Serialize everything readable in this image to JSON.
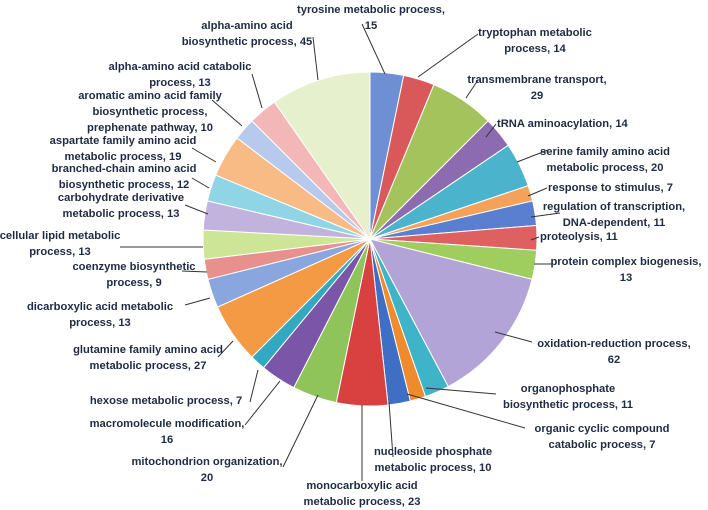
{
  "chart_data": {
    "type": "pie",
    "title": "",
    "slices": [
      {
        "name": "tyrosine metabolic process",
        "value": 15,
        "color": "#6f8fd4",
        "lines": [
          "tyrosine metabolic process,",
          "15"
        ]
      },
      {
        "name": "tryptophan metabolic process",
        "value": 14,
        "color": "#d9585a",
        "lines": [
          "tryptophan metabolic",
          "process, 14"
        ]
      },
      {
        "name": "transmembrane transport",
        "value": 29,
        "color": "#a5c35c",
        "lines": [
          "transmembrane transport,",
          "29"
        ]
      },
      {
        "name": "tRNA aminoacylation",
        "value": 14,
        "color": "#8c6bb1",
        "lines": [
          "tRNA aminoacylation, 14"
        ]
      },
      {
        "name": "serine family amino acid metabolic process",
        "value": 20,
        "color": "#4bb3cc",
        "lines": [
          "serine family amino acid",
          "metabolic process, 20"
        ]
      },
      {
        "name": "response to stimulus",
        "value": 7,
        "color": "#f4a25a",
        "lines": [
          "response to stimulus, 7"
        ]
      },
      {
        "name": "regulation of transcription, DNA-dependent",
        "value": 11,
        "color": "#5a7fd0",
        "lines": [
          "regulation of transcription,",
          "DNA-dependent, 11"
        ]
      },
      {
        "name": "proteolysis",
        "value": 11,
        "color": "#de6060",
        "lines": [
          "proteolysis, 11"
        ]
      },
      {
        "name": "protein complex biogenesis",
        "value": 13,
        "color": "#9fcd5e",
        "lines": [
          "protein complex biogenesis,",
          "13"
        ]
      },
      {
        "name": "oxidation-reduction process",
        "value": 62,
        "color": "#b3a4d8",
        "lines": [
          "oxidation-reduction process,",
          "62"
        ]
      },
      {
        "name": "organophosphate biosynthetic process",
        "value": 11,
        "color": "#3fb3c7",
        "lines": [
          "organophosphate",
          "biosynthetic process, 11"
        ]
      },
      {
        "name": "organic cyclic compound catabolic process",
        "value": 7,
        "color": "#f08b2d",
        "lines": [
          "organic cyclic compound",
          "catabolic process, 7"
        ]
      },
      {
        "name": "nucleoside phosphate metabolic process",
        "value": 10,
        "color": "#3f6fc4",
        "lines": [
          "nucleoside phosphate",
          "metabolic process, 10"
        ]
      },
      {
        "name": "monocarboxylic acid metabolic process",
        "value": 23,
        "color": "#d94040",
        "lines": [
          "monocarboxylic acid",
          "metabolic process, 23"
        ]
      },
      {
        "name": "mitochondrion organization",
        "value": 20,
        "color": "#8fc45a",
        "lines": [
          "mitochondrion organization,",
          "20"
        ]
      },
      {
        "name": "macromolecule modification",
        "value": 16,
        "color": "#7a55a8",
        "lines": [
          "macromolecule modification,",
          "16"
        ]
      },
      {
        "name": "hexose metabolic process",
        "value": 7,
        "color": "#33a8c2",
        "lines": [
          "hexose metabolic process, 7"
        ]
      },
      {
        "name": "glutamine family amino acid metabolic process",
        "value": 27,
        "color": "#f49a45",
        "lines": [
          "glutamine family amino acid",
          "metabolic process, 27"
        ]
      },
      {
        "name": "dicarboxylic acid metabolic process",
        "value": 13,
        "color": "#8aa6de",
        "lines": [
          "dicarboxylic acid metabolic",
          "process, 13"
        ]
      },
      {
        "name": "coenzyme biosynthetic process",
        "value": 9,
        "color": "#e8908e",
        "lines": [
          "coenzyme biosynthetic",
          "process, 9"
        ]
      },
      {
        "name": "cellular lipid metabolic process",
        "value": 13,
        "color": "#cde596",
        "lines": [
          "cellular lipid metabolic",
          "process, 13"
        ]
      },
      {
        "name": "carbohydrate derivative metabolic process",
        "value": 13,
        "color": "#c1b2de",
        "lines": [
          "carbohydrate derivative",
          "metabolic process, 13"
        ]
      },
      {
        "name": "branched-chain amino acid biosynthetic process",
        "value": 12,
        "color": "#8fd5e6",
        "lines": [
          "branched-chain amino acid",
          "biosynthetic process, 12"
        ]
      },
      {
        "name": "aspartate family amino acid metabolic process",
        "value": 19,
        "color": "#f8bb86",
        "lines": [
          "aspartate family amino acid",
          "metabolic process, 19"
        ]
      },
      {
        "name": "aromatic amino acid family biosynthetic process, prephenate pathway",
        "value": 10,
        "color": "#b7c9ec",
        "lines": [
          "aromatic amino acid family",
          "biosynthetic process,",
          "prephenate pathway, 10"
        ]
      },
      {
        "name": "alpha-amino acid catabolic process",
        "value": 13,
        "color": "#f2b7b6",
        "lines": [
          "alpha-amino acid catabolic",
          "process, 13"
        ]
      },
      {
        "name": "alpha-amino acid biosynthetic process",
        "value": 45,
        "color": "#e7f0cc",
        "lines": [
          "alpha-amino acid",
          "biosynthetic process, 45"
        ]
      }
    ]
  }
}
